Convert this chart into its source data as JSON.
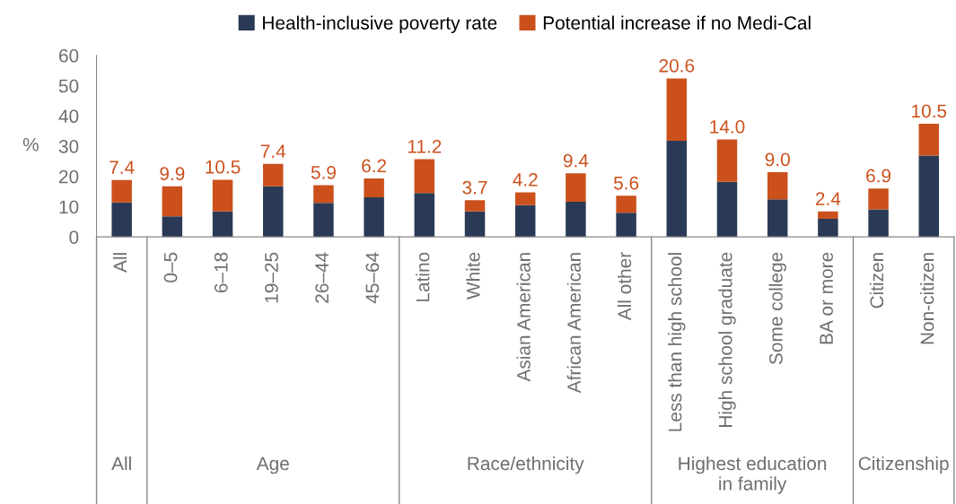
{
  "chart_data": {
    "type": "bar",
    "stacked": true,
    "ylabel": "%",
    "categories": [
      "All",
      "0–5",
      "6–18",
      "19–25",
      "26–44",
      "45–64",
      "Latino",
      "White",
      "Asian American",
      "African American",
      "All other",
      "Less than high school",
      "High school graduate",
      "Some college",
      "BA or more",
      "Citizen",
      "Non-citizen"
    ],
    "series": [
      {
        "name": "Health-inclusive poverty rate",
        "color": "#2a3a56",
        "values": [
          11.4,
          6.8,
          8.4,
          16.7,
          11.2,
          13.1,
          14.5,
          8.4,
          10.5,
          11.6,
          8.0,
          31.8,
          18.2,
          12.4,
          6.0,
          9.1,
          26.9
        ]
      },
      {
        "name": "Potential increase if no Medi-Cal",
        "color": "#cb501b",
        "values": [
          7.4,
          9.9,
          10.5,
          7.4,
          5.9,
          6.2,
          11.2,
          3.7,
          4.2,
          9.4,
          5.6,
          20.6,
          14.0,
          9.0,
          2.4,
          6.9,
          10.5
        ],
        "value_labels": [
          "7.4",
          "9.9",
          "10.5",
          "7.4",
          "5.9",
          "6.2",
          "11.2",
          "3.7",
          "4.2",
          "9.4",
          "5.6",
          "20.6",
          "14.0",
          "9.0",
          "2.4",
          "6.9",
          "10.5"
        ]
      }
    ],
    "ylim": [
      0,
      60
    ],
    "yticks": [
      0,
      10,
      20,
      30,
      40,
      50,
      60
    ],
    "grid": false,
    "legend": "top",
    "annotations": [
      "All",
      "Age",
      "Race/ethnicity",
      "Highest education\nin family",
      "Citizenship"
    ]
  }
}
